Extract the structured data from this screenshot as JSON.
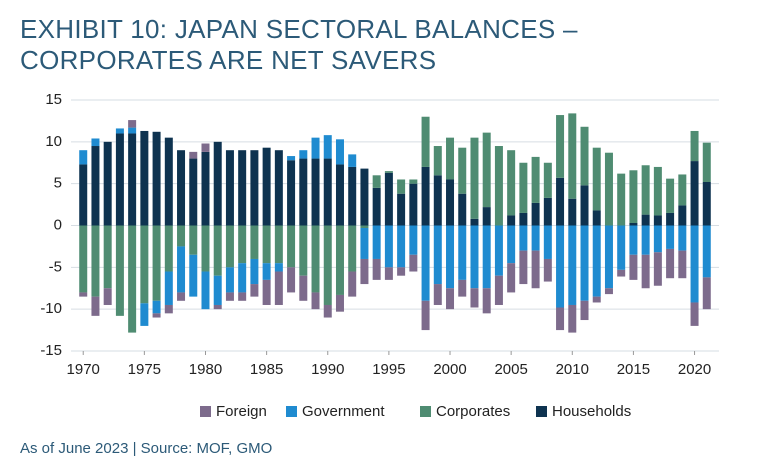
{
  "chart_data": {
    "type": "stacked-bar",
    "title": "EXHIBIT 10: JAPAN SECTORAL BALANCES – CORPORATES ARE NET SAVERS",
    "footnote": "As of June 2023 | Source: MOF, GMO",
    "x": [
      1970,
      1971,
      1972,
      1973,
      1974,
      1975,
      1976,
      1977,
      1978,
      1979,
      1980,
      1981,
      1982,
      1983,
      1984,
      1985,
      1986,
      1987,
      1988,
      1989,
      1990,
      1991,
      1992,
      1993,
      1994,
      1995,
      1996,
      1997,
      1998,
      1999,
      2000,
      2001,
      2002,
      2003,
      2004,
      2005,
      2006,
      2007,
      2008,
      2009,
      2010,
      2011,
      2012,
      2013,
      2014,
      2015,
      2016,
      2017,
      2018,
      2019,
      2020,
      2021
    ],
    "series": [
      {
        "name": "Foreign",
        "color": "#7d6b8c",
        "values": [
          -0.5,
          -2.3,
          -2,
          0,
          0.9,
          0,
          -0.5,
          -1,
          -1,
          0.8,
          1,
          -0.5,
          -1,
          -1,
          -1.5,
          -3,
          -4,
          -3,
          -3,
          -2,
          -1.5,
          -2,
          -3,
          -3,
          -2.5,
          -1.5,
          -1,
          -2,
          -3.5,
          -2.5,
          -2.5,
          -2,
          -2.3,
          -3,
          -3.5,
          -3.5,
          -4,
          -4.5,
          -2.7,
          -2.7,
          -3.3,
          -2.3,
          -0.7,
          -0.7,
          -0.8,
          -3,
          -4,
          -4,
          -3.5,
          -3.3,
          -2.8,
          -3.8
        ]
      },
      {
        "name": "Government",
        "color": "#1f8bd0",
        "values": [
          1.7,
          0.9,
          0,
          0.6,
          0.7,
          -2.7,
          -1.5,
          -4,
          -5.5,
          -5,
          -4.5,
          -3.5,
          -3,
          -3.5,
          -3,
          -2,
          -1,
          0.5,
          1,
          2.5,
          2.8,
          3,
          1.5,
          -3.7,
          -4,
          -5,
          -5,
          -3.5,
          -9,
          -7,
          -7.5,
          -6.5,
          -7.5,
          -7.5,
          -6,
          -4.5,
          -3,
          -3,
          -4,
          -9.8,
          -9.5,
          -9,
          -8.5,
          -7.5,
          -5.3,
          -3.5,
          -3.5,
          -3.2,
          -2.8,
          -3,
          -9.2,
          -6.2
        ]
      },
      {
        "name": "Corporates",
        "color": "#4f8c72",
        "values": [
          -8,
          -8.5,
          -7.5,
          -10.8,
          -12.8,
          -9.3,
          -9,
          -5.5,
          -2.5,
          -3.5,
          -5.5,
          -6,
          -5,
          -4.5,
          -4,
          -4.5,
          -4.5,
          -5,
          -6,
          -8,
          -9.5,
          -8.3,
          -5.5,
          -0.3,
          1.5,
          0.2,
          1.7,
          0.5,
          6,
          3.5,
          5,
          5.5,
          9.7,
          8.9,
          9.5,
          7.8,
          6,
          5.5,
          4.2,
          7.5,
          10.2,
          7,
          7.5,
          8.7,
          6.2,
          6.3,
          5.9,
          5.8,
          4.1,
          3.7,
          3.6,
          4.7
        ]
      },
      {
        "name": "Households",
        "color": "#0e3350",
        "values": [
          7.3,
          9.5,
          10,
          11,
          11,
          11.3,
          11.2,
          10.5,
          9,
          8,
          8.8,
          10,
          9,
          9,
          9,
          9.3,
          9,
          7.8,
          8,
          8,
          8,
          7.3,
          7,
          6.8,
          4.5,
          6.3,
          3.8,
          5,
          7,
          6,
          5.5,
          3.8,
          0.8,
          2.2,
          0,
          1.2,
          1.5,
          2.7,
          3.3,
          5.7,
          3.2,
          4.8,
          1.8,
          0,
          0,
          0.3,
          1.3,
          1.2,
          1.5,
          2.4,
          7.7,
          5.2
        ]
      }
    ],
    "xlim": [
      1969,
      2022
    ],
    "xticks": [
      1970,
      1975,
      1980,
      1985,
      1990,
      1995,
      2000,
      2005,
      2010,
      2015,
      2020
    ],
    "ylim": [
      -15,
      15
    ],
    "yticks": [
      -15,
      -10,
      -5,
      0,
      5,
      10,
      15
    ],
    "grid": true,
    "legend": "bottom"
  }
}
